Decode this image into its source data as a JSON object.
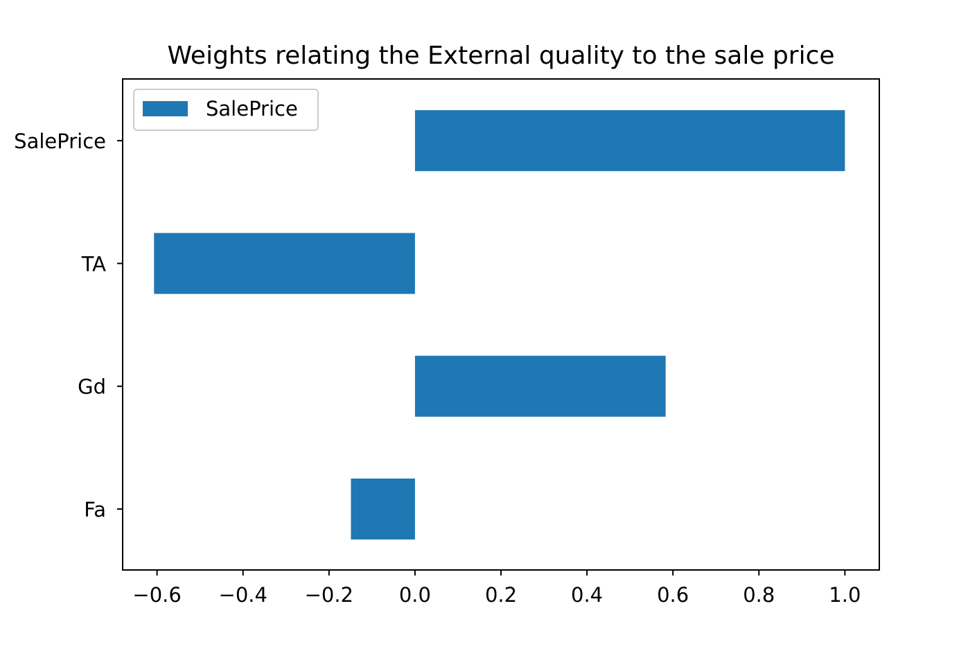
{
  "chart_data": {
    "type": "bar",
    "orientation": "horizontal",
    "title": "Weights relating the External quality to the sale price",
    "xlabel": "",
    "ylabel": "",
    "categories": [
      "Fa",
      "Gd",
      "TA",
      "SalePrice"
    ],
    "series": [
      {
        "name": "SalePrice",
        "color": "#1f77b4",
        "values": [
          -0.149,
          0.583,
          -0.607,
          1.0
        ]
      }
    ],
    "xlim": [
      -0.68,
      1.08
    ],
    "xticks": [
      -0.6,
      -0.4,
      -0.2,
      0.0,
      0.2,
      0.4,
      0.6,
      0.8,
      1.0
    ],
    "xtick_labels": [
      "−0.6",
      "−0.4",
      "−0.2",
      "0.0",
      "0.2",
      "0.4",
      "0.6",
      "0.8",
      "1.0"
    ],
    "grid": false,
    "legend": {
      "position": "upper-left",
      "entries": [
        "SalePrice"
      ]
    }
  }
}
